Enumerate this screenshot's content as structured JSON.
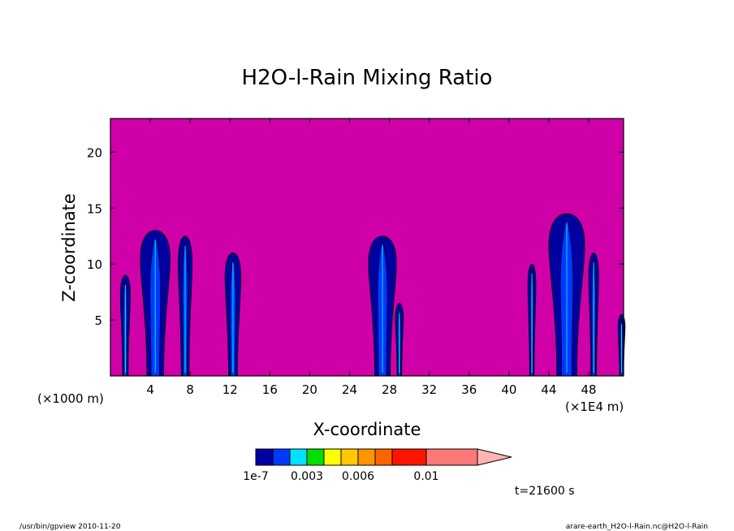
{
  "chart_data": {
    "type": "heatmap",
    "title": "H2O-l-Rain Mixing Ratio",
    "xlabel": "X-coordinate",
    "ylabel": "Z-coordinate",
    "x_ticks": [
      4,
      8,
      12,
      16,
      20,
      24,
      28,
      32,
      36,
      40,
      44,
      48
    ],
    "y_ticks": [
      5,
      10,
      15,
      20
    ],
    "xlim": [
      0,
      51.5
    ],
    "ylim": [
      0,
      23
    ],
    "x_unit_left": "(×1000 m)",
    "x_unit_right": "(×1E4 m)",
    "background_color": "#d000a8",
    "rain_cells": [
      {
        "x": 1.5,
        "top": 9.0,
        "width": 1.0
      },
      {
        "x": 4.5,
        "top": 13.0,
        "width": 3.0
      },
      {
        "x": 7.5,
        "top": 12.5,
        "width": 1.4
      },
      {
        "x": 12.3,
        "top": 11.0,
        "width": 1.6
      },
      {
        "x": 27.3,
        "top": 12.5,
        "width": 2.8
      },
      {
        "x": 29.0,
        "top": 6.5,
        "width": 0.8
      },
      {
        "x": 42.3,
        "top": 10.0,
        "width": 0.8
      },
      {
        "x": 45.8,
        "top": 14.5,
        "width": 3.6
      },
      {
        "x": 48.5,
        "top": 11.0,
        "width": 1.0
      },
      {
        "x": 51.3,
        "top": 5.5,
        "width": 0.7
      }
    ],
    "colorbar": {
      "colors": [
        "#0000a0",
        "#0038ff",
        "#00e0ff",
        "#00e000",
        "#ffff00",
        "#ffc800",
        "#ff9600",
        "#ff6400",
        "#ff1400",
        "#ff7878"
      ],
      "extend_color": "#ffb4b4",
      "labels": [
        "1e-7",
        "0.003",
        "0.006",
        "0.01"
      ]
    },
    "time_label": "t=21600 s"
  },
  "footer": {
    "left": "/usr/bin/gpview  2010-11-20",
    "right": "arare-earth_H2O-l-Rain.nc@H2O-l-Rain"
  }
}
